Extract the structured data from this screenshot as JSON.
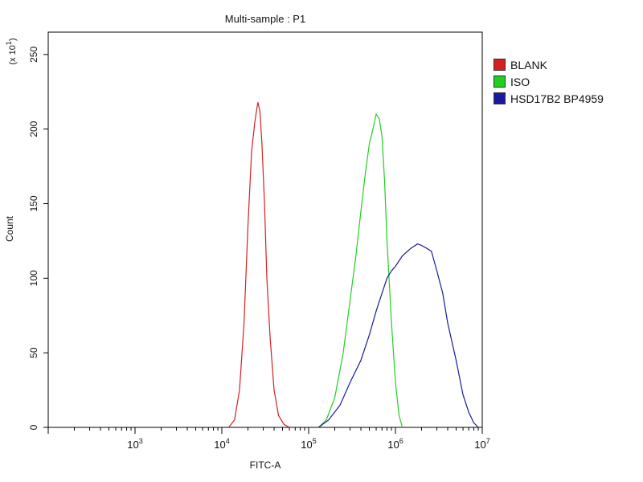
{
  "chart_data": {
    "type": "line",
    "title": "Multi-sample : P1",
    "xlabel": "FITC-A",
    "ylabel": "Count",
    "y_scale_note": "(x 10^1)",
    "x_scale": "log",
    "xlim": [
      100,
      10000000
    ],
    "ylim": [
      0,
      265
    ],
    "x_tick_labels": [
      "10^3",
      "10^4",
      "10^5",
      "10^6",
      "10^7"
    ],
    "x_tick_values": [
      1000,
      10000,
      100000,
      1000000,
      10000000
    ],
    "y_ticks": [
      0,
      50,
      100,
      150,
      200,
      250
    ],
    "grid": false,
    "legend_position": "right",
    "series": [
      {
        "name": "BLANK",
        "color": "#d42020",
        "x": [
          12000,
          14000,
          16000,
          18000,
          20000,
          22000,
          24000,
          26000,
          27500,
          29000,
          31000,
          33000,
          36000,
          40000,
          45000,
          52000,
          60000
        ],
        "y": [
          0,
          5,
          25,
          70,
          135,
          185,
          205,
          218,
          212,
          190,
          150,
          100,
          60,
          25,
          8,
          2,
          0
        ]
      },
      {
        "name": "ISO",
        "color": "#20d020",
        "x": [
          130000,
          160000,
          200000,
          250000,
          300000,
          350000,
          400000,
          450000,
          500000,
          550000,
          600000,
          650000,
          700000,
          750000,
          800000,
          900000,
          1000000,
          1100000,
          1200000
        ],
        "y": [
          0,
          5,
          20,
          50,
          85,
          115,
          145,
          170,
          190,
          200,
          210,
          207,
          195,
          165,
          125,
          70,
          30,
          8,
          0
        ]
      },
      {
        "name": "HSD17B2 BP4959",
        "color": "#1a1aa0",
        "x": [
          130000,
          170000,
          230000,
          300000,
          400000,
          500000,
          600000,
          700000,
          800000,
          900000,
          1000000,
          1200000,
          1500000,
          1800000,
          2000000,
          2300000,
          2600000,
          3000000,
          3500000,
          4000000,
          5000000,
          6000000,
          7000000,
          8000000,
          9000000
        ],
        "y": [
          0,
          5,
          15,
          30,
          45,
          62,
          78,
          90,
          100,
          105,
          108,
          115,
          120,
          123,
          122,
          120,
          118,
          105,
          90,
          70,
          45,
          22,
          10,
          3,
          0
        ]
      }
    ]
  }
}
